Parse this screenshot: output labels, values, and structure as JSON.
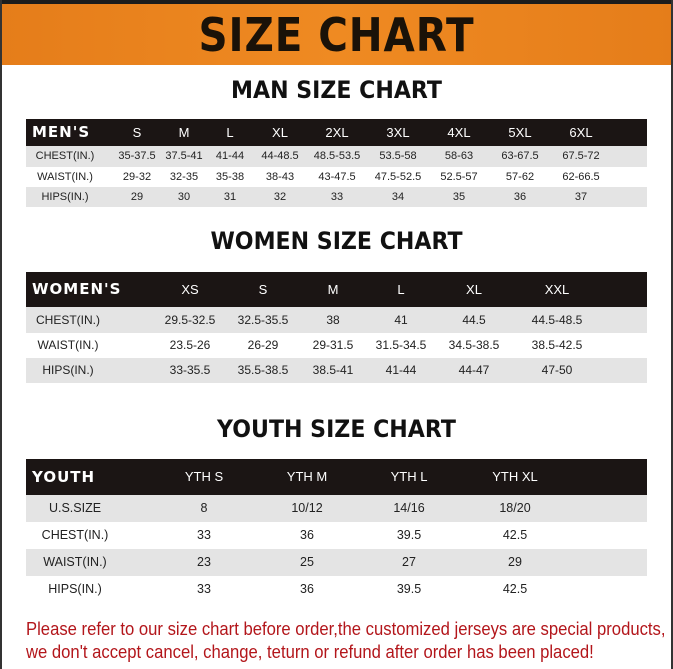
{
  "banner": {
    "title": "SIZE CHART"
  },
  "colors": {
    "banner": "#ef8a22",
    "header_row": "#1b1514",
    "note": "#b3161b"
  },
  "men": {
    "title": "MAN SIZE CHART",
    "header": [
      "MEN'S",
      "S",
      "M",
      "L",
      "XL",
      "2XL",
      "3XL",
      "4XL",
      "5XL",
      "6XL"
    ],
    "rows": [
      [
        "CHEST(IN.)",
        "35-37.5",
        "37.5-41",
        "41-44",
        "44-48.5",
        "48.5-53.5",
        "53.5-58",
        "58-63",
        "63-67.5",
        "67.5-72"
      ],
      [
        "WAIST(IN.)",
        "29-32",
        "32-35",
        "35-38",
        "38-43",
        "43-47.5",
        "47.5-52.5",
        "52.5-57",
        "57-62",
        "62-66.5"
      ],
      [
        "HIPS(IN.)",
        "29",
        "30",
        "31",
        "32",
        "33",
        "34",
        "35",
        "36",
        "37"
      ]
    ]
  },
  "women": {
    "title": "WOMEN SIZE CHART",
    "header": [
      "WOMEN'S",
      "XS",
      "S",
      "M",
      "L",
      "XL",
      "XXL"
    ],
    "rows": [
      [
        "CHEST(IN.)",
        "29.5-32.5",
        "32.5-35.5",
        "38",
        "41",
        "44.5",
        "44.5-48.5"
      ],
      [
        "WAIST(IN.)",
        "23.5-26",
        "26-29",
        "29-31.5",
        "31.5-34.5",
        "34.5-38.5",
        "38.5-42.5"
      ],
      [
        "HIPS(IN.)",
        "33-35.5",
        "35.5-38.5",
        "38.5-41",
        "41-44",
        "44-47",
        "47-50"
      ]
    ]
  },
  "youth": {
    "title": "YOUTH SIZE CHART",
    "header": [
      "YOUTH",
      "YTH S",
      "YTH M",
      "YTH L",
      "YTH XL"
    ],
    "rows": [
      [
        "U.S.SIZE",
        "8",
        "10/12",
        "14/16",
        "18/20"
      ],
      [
        "CHEST(IN.)",
        "33",
        "36",
        "39.5",
        "42.5"
      ],
      [
        "WAIST(IN.)",
        "23",
        "25",
        "27",
        "29"
      ],
      [
        "HIPS(IN.)",
        "33",
        "36",
        "39.5",
        "42.5"
      ]
    ]
  },
  "note": {
    "line1": "Please refer to our size chart before order,the customized jerseys are special products,",
    "line2": "we don't accept cancel, change, teturn or refund after order has been placed!"
  }
}
